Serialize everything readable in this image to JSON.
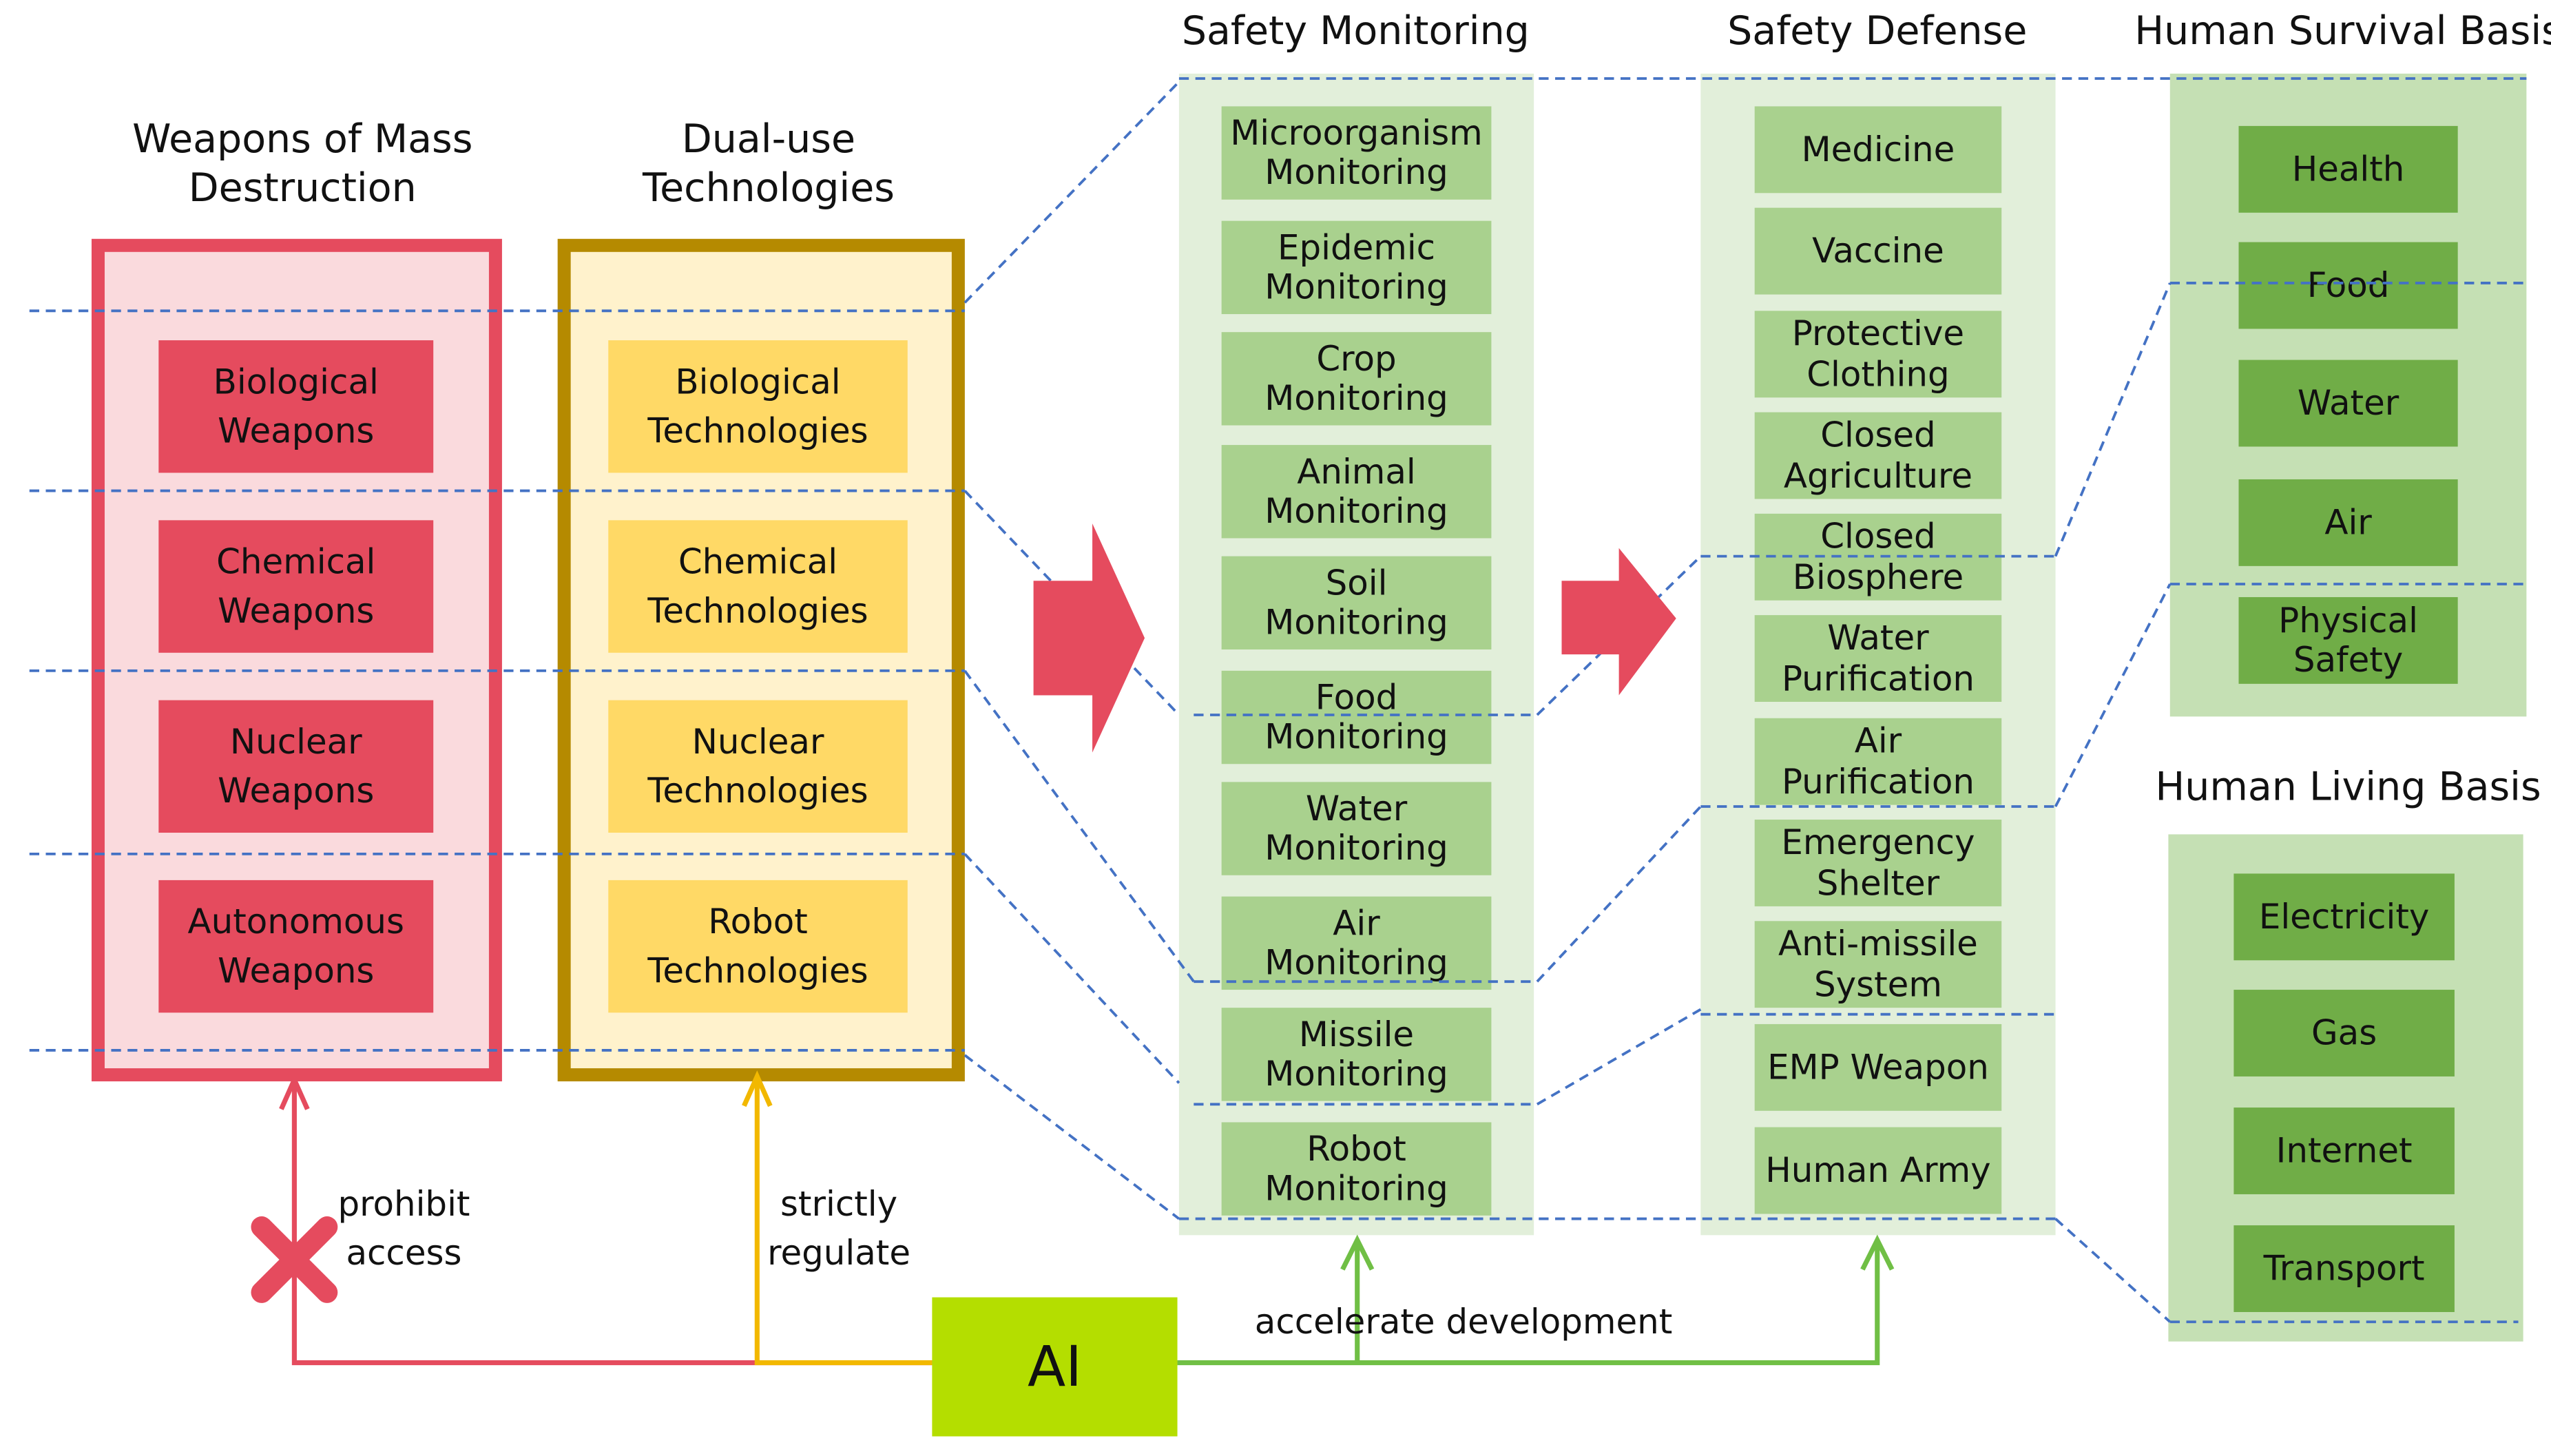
{
  "colors": {
    "wmd": "#E54B5E",
    "wmd_bg": "#FADADD",
    "dual": "#B58A00",
    "dual_bg": "#FFF2CC",
    "dual_item": "#FFD966",
    "monitor_bg": "#E2EFDA",
    "monitor_item": "#A9D18E",
    "basis_bg": "#C5E0B4",
    "basis_item": "#70AD47",
    "ai": "#B4DE00",
    "link": "#4472C4",
    "regulate": "#F2B800",
    "develop": "#70BF45"
  },
  "wmd": {
    "title": [
      "Weapons of Mass",
      "Destruction"
    ],
    "items": [
      [
        "Biological",
        "Weapons"
      ],
      [
        "Chemical",
        "Weapons"
      ],
      [
        "Nuclear",
        "Weapons"
      ],
      [
        "Autonomous",
        "Weapons"
      ]
    ]
  },
  "dual": {
    "title": [
      "Dual-use",
      "Technologies"
    ],
    "items": [
      [
        "Biological",
        "Technologies"
      ],
      [
        "Chemical",
        "Technologies"
      ],
      [
        "Nuclear",
        "Technologies"
      ],
      [
        "Robot",
        "Technologies"
      ]
    ]
  },
  "monitoring": {
    "title": "Safety Monitoring",
    "items": [
      [
        "Microorganism",
        "Monitoring"
      ],
      [
        "Epidemic",
        "Monitoring"
      ],
      [
        "Crop",
        "Monitoring"
      ],
      [
        "Animal",
        "Monitoring"
      ],
      [
        "Soil",
        "Monitoring"
      ],
      [
        "Food",
        "Monitoring"
      ],
      [
        "Water",
        "Monitoring"
      ],
      [
        "Air",
        "Monitoring"
      ],
      [
        "Missile",
        "Monitoring"
      ],
      [
        "Robot",
        "Monitoring"
      ]
    ]
  },
  "defense": {
    "title": "Safety Defense",
    "items": [
      [
        "Medicine"
      ],
      [
        "Vaccine"
      ],
      [
        "Protective",
        "Clothing"
      ],
      [
        "Closed",
        "Agriculture"
      ],
      [
        "Closed",
        "Biosphere"
      ],
      [
        "Water",
        "Purification"
      ],
      [
        "Air",
        "Purification"
      ],
      [
        "Emergency",
        "Shelter"
      ],
      [
        "Anti-missile",
        "System"
      ],
      [
        "EMP Weapon"
      ],
      [
        "Human Army"
      ]
    ]
  },
  "survival": {
    "title": "Human Survival Basis",
    "items": [
      [
        "Health"
      ],
      [
        "Food"
      ],
      [
        "Water"
      ],
      [
        "Air"
      ],
      [
        "Physical",
        "Safety"
      ]
    ]
  },
  "living": {
    "title": "Human Living Basis",
    "items": [
      [
        "Electricity"
      ],
      [
        "Gas"
      ],
      [
        "Internet"
      ],
      [
        "Transport"
      ]
    ]
  },
  "ai": {
    "label": "AI"
  },
  "edges": {
    "prohibit": [
      "prohibit",
      "access"
    ],
    "regulate": [
      "strictly",
      "regulate"
    ],
    "develop": "accelerate development"
  }
}
